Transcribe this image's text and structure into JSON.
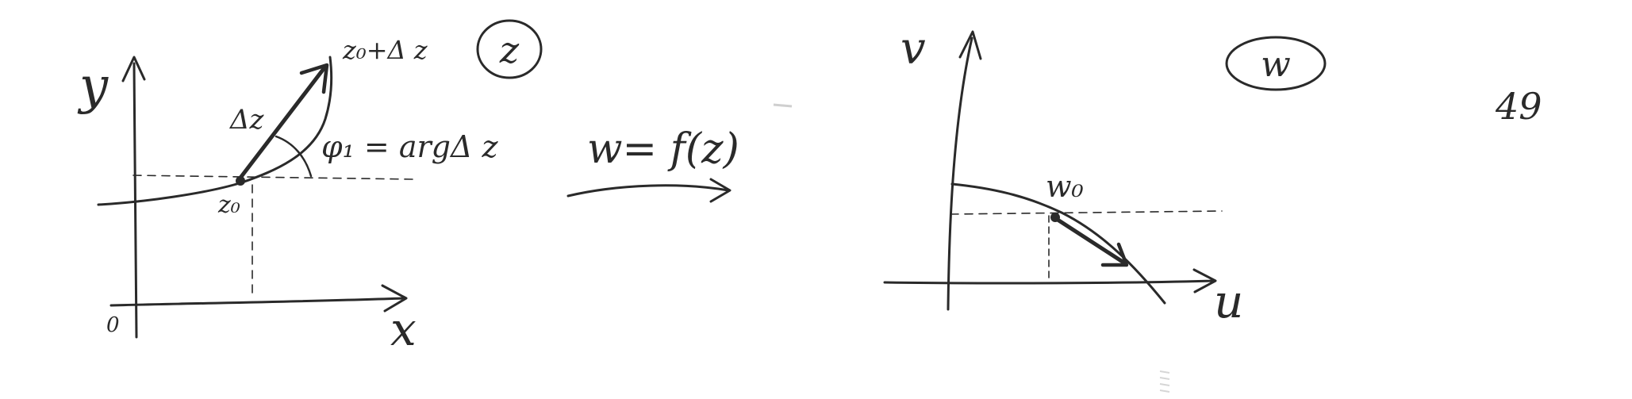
{
  "z_plane": {
    "y_axis_label": "y",
    "x_axis_label": "x",
    "origin_label": "0",
    "start_point_label": "z₀",
    "end_point_label": "z₀+Δ z",
    "vector_label": "Δz",
    "angle_label": "φ₁ = argΔ z",
    "plane_badge": "z"
  },
  "mapping": {
    "label": "w= f(z)"
  },
  "w_plane": {
    "v_axis_label": "v",
    "u_axis_label": "u",
    "point_label": "w₀",
    "plane_badge": "w"
  },
  "page_number": "49"
}
